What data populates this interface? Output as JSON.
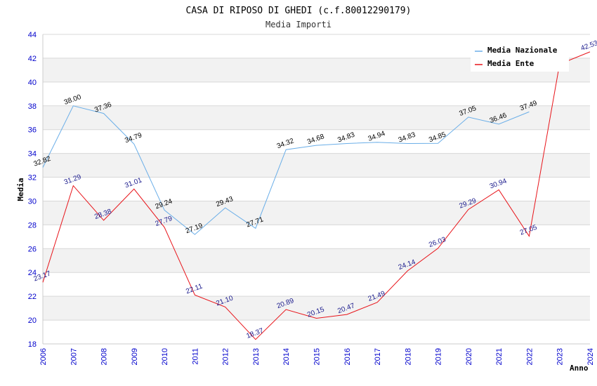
{
  "chart_data": {
    "type": "line",
    "title": "CASA DI RIPOSO DI GHEDI (c.f.80012290179)",
    "subtitle": "Media Importi",
    "xlabel": "Anno",
    "ylabel": "Media",
    "ylim": [
      18,
      44
    ],
    "yticks": [
      "18",
      "20",
      "22",
      "24",
      "26",
      "28",
      "30",
      "32",
      "34",
      "36",
      "38",
      "40",
      "42",
      "44"
    ],
    "categories": [
      "2006",
      "2007",
      "2008",
      "2009",
      "2010",
      "2011",
      "2012",
      "2013",
      "2014",
      "2015",
      "2016",
      "2017",
      "2018",
      "2019",
      "2020",
      "2021",
      "2022",
      "2023",
      "2024"
    ],
    "grid": true,
    "legend_position": "top-right",
    "series": [
      {
        "name": "Media Nazionale",
        "color": "#6aaee8",
        "label_color": "#000000",
        "values": [
          32.82,
          38.0,
          37.36,
          34.79,
          29.24,
          27.19,
          29.43,
          27.71,
          34.32,
          34.68,
          34.83,
          34.94,
          34.83,
          34.85,
          37.05,
          36.46,
          37.49,
          null,
          null
        ],
        "labels": [
          "32.82",
          "38.00",
          "37.36",
          "34.79",
          "29.24",
          "27.19",
          "29.43",
          "27.71",
          "34.32",
          "34.68",
          "34.83",
          "34.94",
          "34.83",
          "34.85",
          "37.05",
          "36.46",
          "37.49",
          null,
          null
        ]
      },
      {
        "name": "Media Ente",
        "color": "#e8141a",
        "label_color": "#1a1a8c",
        "values": [
          23.17,
          31.29,
          28.38,
          31.01,
          27.79,
          22.11,
          21.1,
          18.37,
          20.89,
          20.15,
          20.47,
          21.49,
          24.14,
          26.03,
          29.29,
          30.94,
          27.05,
          41.5,
          42.53
        ],
        "labels": [
          "23.17",
          "31.29",
          "28.38",
          "31.01",
          "27.79",
          "22.11",
          "21.10",
          "18.37",
          "20.89",
          "20.15",
          "20.47",
          "21.49",
          "24.14",
          "26.03",
          "29.29",
          "30.94",
          "27.05",
          null,
          "42.53"
        ]
      }
    ],
    "colors": {
      "band": "#f2f2f2",
      "grid": "#d8d8d8",
      "axis": "#cccccc",
      "tick_text": "#0000cc"
    }
  }
}
